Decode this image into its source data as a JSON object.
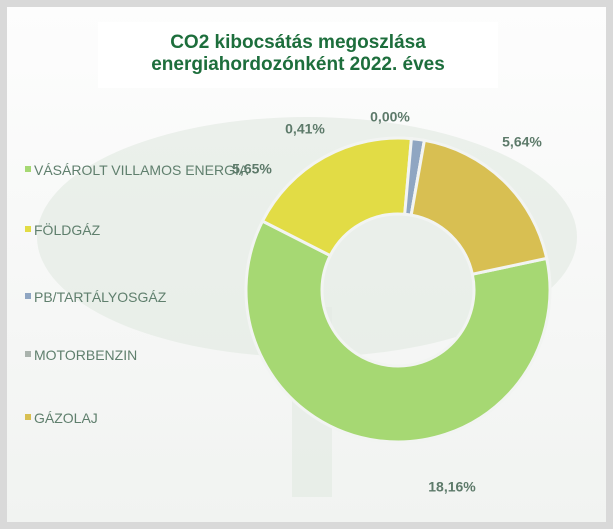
{
  "chart_data": {
    "type": "donut",
    "title": "CO2 kibocsátás megoszlása\nenergiahordozónként   2022. éves",
    "categories": [
      "VÁSÁROLT VILLAMOS ENERGIA",
      "FÖLDGÁZ",
      "PB/TARTÁLYOSGÁZ",
      "MOTORBENZIN",
      "GÁZOLAJ"
    ],
    "values": [
      18.16,
      5.65,
      0.41,
      0.0,
      5.64
    ],
    "value_labels": [
      "18,16%",
      "5,65%",
      "0,41%",
      "0,00%",
      "5,64%"
    ],
    "colors": [
      "#a6d873",
      "#e2dc45",
      "#8fa6c2",
      "#aab3ad",
      "#d8bf52"
    ],
    "legend": "left"
  }
}
